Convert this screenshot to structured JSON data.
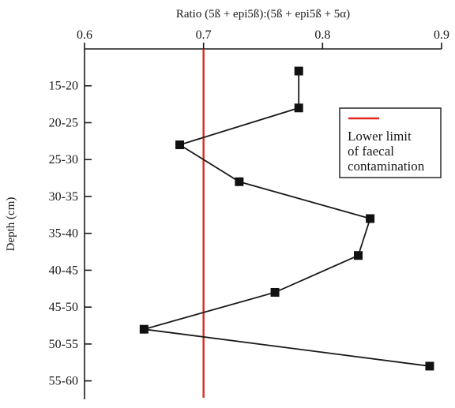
{
  "chart_data": {
    "type": "line",
    "title": "",
    "xlabel": "Ratio (5ß + epi5ß):(5ß + epi5ß + 5α)",
    "ylabel": "Depth (cm)",
    "x_axis_position": "top",
    "xlim": [
      0.6,
      0.9
    ],
    "x_ticks": [
      0.6,
      0.7,
      0.8,
      0.9
    ],
    "x_tick_labels": [
      "0.6",
      "0.7",
      "0.8",
      "0.9"
    ],
    "y_tick_labels": [
      "15-20",
      "20-25",
      "25-30",
      "30-35",
      "35-40",
      "40-45",
      "45-50",
      "50-55",
      "55-60"
    ],
    "y_values": [
      17.5,
      22.5,
      27.5,
      32.5,
      37.5,
      42.5,
      47.5,
      52.5,
      57.5
    ],
    "ylim": [
      12.5,
      60
    ],
    "y_inverted": true,
    "grid": false,
    "series": [
      {
        "x": [
          0.78,
          0.78,
          0.68,
          0.73,
          0.84,
          0.83,
          0.76,
          0.65,
          0.89
        ],
        "y": [
          15.5,
          20.5,
          25.5,
          30.5,
          35.5,
          40.5,
          45.5,
          50.5,
          55.5
        ],
        "color": "#1a1a1a",
        "marker": "square"
      }
    ],
    "reference_line": {
      "x": 0.7,
      "color": "#e0281e",
      "label": "Lower limit of faecal contamination"
    },
    "legend": {
      "position": "top-right",
      "lines": [
        "Lower limit",
        "of faecal",
        "contamination"
      ]
    }
  }
}
